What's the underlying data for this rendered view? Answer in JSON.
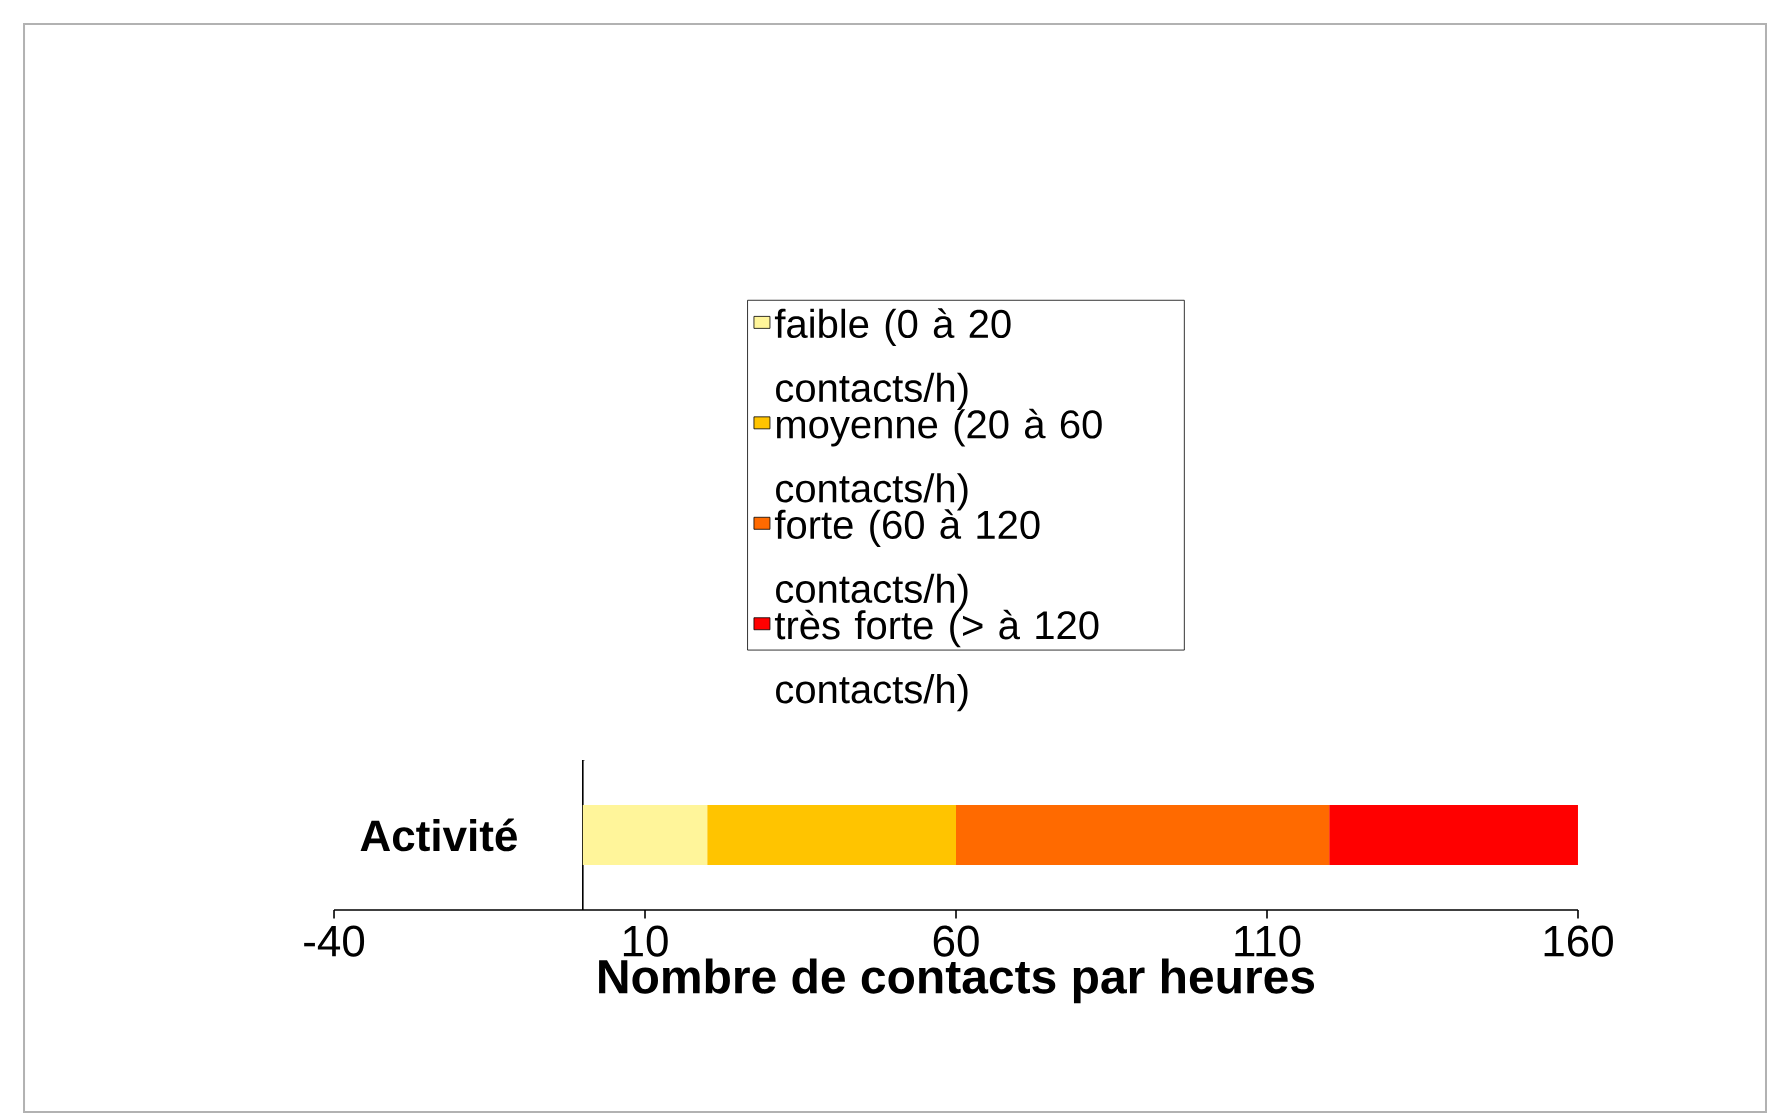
{
  "chart_data": {
    "type": "bar",
    "orientation": "horizontal",
    "stacked": true,
    "categories": [
      "Activité"
    ],
    "xlabel": "Nombre de contacts par heures",
    "xlim": [
      -40,
      160
    ],
    "xticks": [
      -40,
      10,
      60,
      110,
      160
    ],
    "legend": "top",
    "series": [
      {
        "name": "faible (0 à 20 contacts/h)",
        "color": "#fff59a",
        "values": [
          20
        ]
      },
      {
        "name": "moyenne (20 à 60 contacts/h)",
        "color": "#ffc400",
        "values": [
          40
        ]
      },
      {
        "name": "forte (60 à 120 contacts/h)",
        "color": "#ff6a00",
        "values": [
          60
        ]
      },
      {
        "name": "très forte (> à 120 contacts/h)",
        "color": "#ff0000",
        "values": [
          40
        ]
      }
    ]
  }
}
